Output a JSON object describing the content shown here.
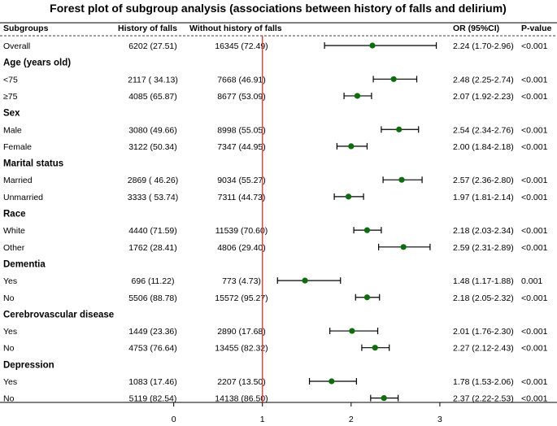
{
  "chart_data": {
    "type": "forest",
    "title": "Forest plot of subgroup analysis (associations between history of falls and delirium)",
    "columns": {
      "subgroups": "Subgroups",
      "falls": "History of falls",
      "no_falls": "Without history of falls",
      "or": "OR (95%CI)",
      "p": "P-value"
    },
    "x_axis": {
      "ticks": [
        "0",
        "1",
        "2",
        "3"
      ],
      "tick_values": [
        0,
        1,
        2,
        3
      ],
      "reference_line": 1,
      "xlim": [
        -0.95,
        3.45
      ]
    },
    "rows": [
      {
        "type": "data",
        "label": "Overall",
        "falls": "6202 (27.51)",
        "no_falls": "16345 (72.49)",
        "or_text": "2.24 (1.70-2.96)",
        "p": "<0.001",
        "or": 2.24,
        "lo": 1.7,
        "hi": 2.96
      },
      {
        "type": "group",
        "label": "Age (years old)"
      },
      {
        "type": "data",
        "label": "<75",
        "falls": "2117 ( 34.13)",
        "no_falls": "7668 (46.91)",
        "or_text": "2.48 (2.25-2.74)",
        "p": "<0.001",
        "or": 2.48,
        "lo": 2.25,
        "hi": 2.74
      },
      {
        "type": "data",
        "label": "≥75",
        "falls": "4085 (65.87)",
        "no_falls": "8677 (53.09)",
        "or_text": "2.07 (1.92-2.23)",
        "p": "<0.001",
        "or": 2.07,
        "lo": 1.92,
        "hi": 2.23
      },
      {
        "type": "group",
        "label": "Sex"
      },
      {
        "type": "data",
        "label": "Male",
        "falls": "3080 (49.66)",
        "no_falls": "8998 (55.05)",
        "or_text": "2.54 (2.34-2.76)",
        "p": "<0.001",
        "or": 2.54,
        "lo": 2.34,
        "hi": 2.76
      },
      {
        "type": "data",
        "label": "Female",
        "falls": "3122 (50.34)",
        "no_falls": "7347 (44.95)",
        "or_text": "2.00 (1.84-2.18)",
        "p": "<0.001",
        "or": 2.0,
        "lo": 1.84,
        "hi": 2.18
      },
      {
        "type": "group",
        "label": "Marital status"
      },
      {
        "type": "data",
        "label": "Married",
        "falls": "2869 ( 46.26)",
        "no_falls": "9034 (55.27)",
        "or_text": "2.57 (2.36-2.80)",
        "p": "<0.001",
        "or": 2.57,
        "lo": 2.36,
        "hi": 2.8
      },
      {
        "type": "data",
        "label": "Unmarried",
        "falls": "3333 ( 53.74)",
        "no_falls": "7311 (44.73)",
        "or_text": "1.97 (1.81-2.14)",
        "p": "<0.001",
        "or": 1.97,
        "lo": 1.81,
        "hi": 2.14
      },
      {
        "type": "group",
        "label": "Race"
      },
      {
        "type": "data",
        "label": "White",
        "falls": "4440 (71.59)",
        "no_falls": "11539 (70.60)",
        "or_text": "2.18 (2.03-2.34)",
        "p": "<0.001",
        "or": 2.18,
        "lo": 2.03,
        "hi": 2.34
      },
      {
        "type": "data",
        "label": "Other",
        "falls": "1762 (28.41)",
        "no_falls": "4806 (29.40)",
        "or_text": "2.59 (2.31-2.89)",
        "p": "<0.001",
        "or": 2.59,
        "lo": 2.31,
        "hi": 2.89
      },
      {
        "type": "group",
        "label": "Dementia"
      },
      {
        "type": "data",
        "label": "Yes",
        "falls": "696 (11.22)",
        "no_falls": "773 (4.73)",
        "or_text": "1.48 (1.17-1.88)",
        "p": "0.001",
        "or": 1.48,
        "lo": 1.17,
        "hi": 1.88
      },
      {
        "type": "data",
        "label": "No",
        "falls": "5506 (88.78)",
        "no_falls": "15572 (95.27)",
        "or_text": "2.18 (2.05-2.32)",
        "p": "<0.001",
        "or": 2.18,
        "lo": 2.05,
        "hi": 2.32
      },
      {
        "type": "group",
        "label": "Cerebrovascular disease"
      },
      {
        "type": "data",
        "label": "Yes",
        "falls": "1449 (23.36)",
        "no_falls": "2890 (17.68)",
        "or_text": "2.01 (1.76-2.30)",
        "p": "<0.001",
        "or": 2.01,
        "lo": 1.76,
        "hi": 2.3
      },
      {
        "type": "data",
        "label": "No",
        "falls": "4753 (76.64)",
        "no_falls": "13455 (82.32)",
        "or_text": "2.27 (2.12-2.43)",
        "p": "<0.001",
        "or": 2.27,
        "lo": 2.12,
        "hi": 2.43
      },
      {
        "type": "group",
        "label": "Depression"
      },
      {
        "type": "data",
        "label": "Yes",
        "falls": "1083 (17.46)",
        "no_falls": "2207 (13.50)",
        "or_text": "1.78 (1.53-2.06)",
        "p": "<0.001",
        "or": 1.78,
        "lo": 1.53,
        "hi": 2.06
      },
      {
        "type": "data",
        "label": "No",
        "falls": "5119 (82.54)",
        "no_falls": "14138 (86.50)",
        "or_text": "2.37 (2.22-2.53)",
        "p": "<0.001",
        "or": 2.37,
        "lo": 2.22,
        "hi": 2.53
      }
    ]
  },
  "colors": {
    "point": "#0a6e0a",
    "whisker": "#000000",
    "reference_line": "#e03030",
    "rule": "#000000"
  }
}
